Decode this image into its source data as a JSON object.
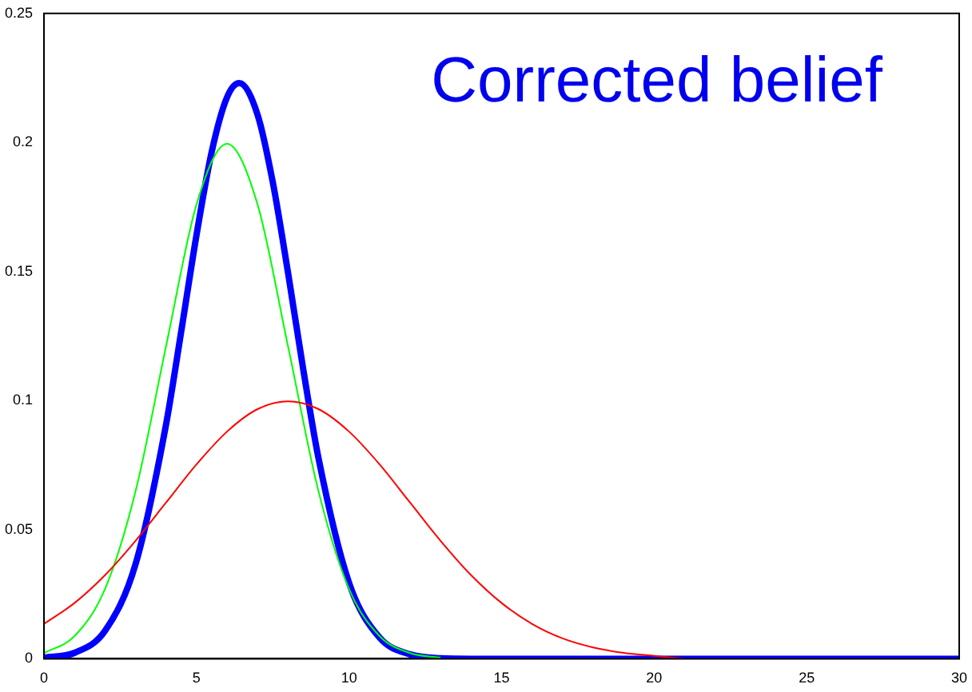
{
  "chart_data": {
    "type": "line",
    "annotations": [
      "Corrected belief"
    ],
    "xlim": [
      0,
      30
    ],
    "xticks": [
      0,
      5,
      10,
      15,
      20,
      25,
      30
    ],
    "ylim": [
      0,
      0.25
    ],
    "yticks": [
      0,
      0.05,
      0.1,
      0.15,
      0.2,
      0.25
    ],
    "grid": false,
    "legend": false,
    "marker": "none",
    "series": [
      {
        "color": "#ff0000",
        "x": [
          0,
          1,
          2,
          3,
          4,
          5,
          6,
          7,
          8,
          9,
          10,
          11,
          12,
          13,
          14,
          15,
          16,
          17,
          18,
          19,
          20,
          21
        ],
        "values": [
          0.0135,
          0.0216,
          0.0324,
          0.0457,
          0.0605,
          0.0753,
          0.088,
          0.0967,
          0.0997,
          0.0967,
          0.088,
          0.0753,
          0.0605,
          0.0457,
          0.0324,
          0.0216,
          0.0135,
          0.0079,
          0.0044,
          0.0023,
          0.0011,
          0
        ]
      },
      {
        "color": "#00ff00",
        "x": [
          0,
          1,
          2,
          3,
          4,
          5,
          6,
          7,
          8,
          9,
          10,
          11,
          12,
          13
        ],
        "values": [
          0.0022,
          0.0088,
          0.027,
          0.0648,
          0.121,
          0.176,
          0.1995,
          0.176,
          0.121,
          0.0648,
          0.027,
          0.0088,
          0.0022,
          0.0004
        ]
      },
      {
        "color": "#0000ff",
        "x": [
          0,
          1,
          2,
          3,
          4,
          4.5,
          5,
          5.5,
          6,
          6.4,
          7,
          7.5,
          8,
          8.5,
          9,
          10,
          11,
          12,
          13,
          14,
          15,
          20,
          25,
          30
        ],
        "values": [
          0.0004,
          0.0023,
          0.0108,
          0.0366,
          0.0907,
          0.1269,
          0.1642,
          0.1965,
          0.2175,
          0.223,
          0.2108,
          0.1846,
          0.1495,
          0.112,
          0.0776,
          0.0294,
          0.0082,
          0.0017,
          0.0002,
          0,
          0,
          0,
          0,
          0
        ]
      }
    ]
  }
}
